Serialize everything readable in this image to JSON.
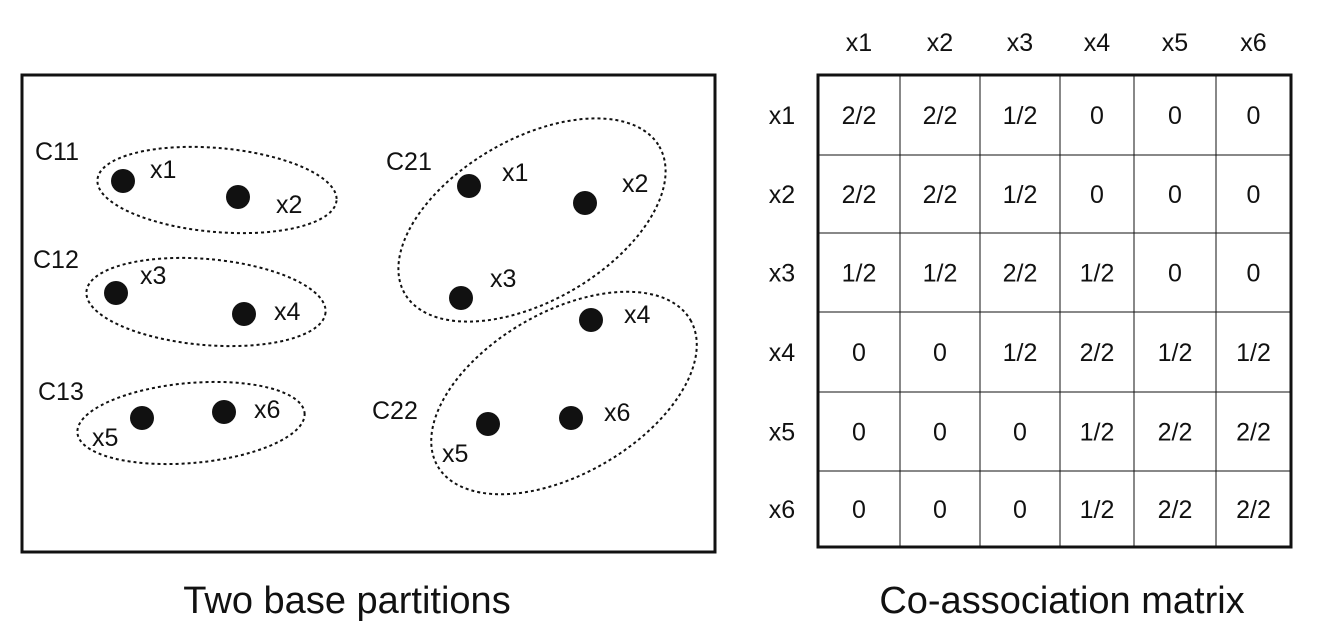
{
  "left_panel": {
    "caption": "Two base partitions",
    "clusters": [
      {
        "label": "C11",
        "points": [
          {
            "label": "x1"
          },
          {
            "label": "x2"
          }
        ]
      },
      {
        "label": "C12",
        "points": [
          {
            "label": "x3"
          },
          {
            "label": "x4"
          }
        ]
      },
      {
        "label": "C13",
        "points": [
          {
            "label": "x5"
          },
          {
            "label": "x6"
          }
        ]
      },
      {
        "label": "C21",
        "points": [
          {
            "label": "x1"
          },
          {
            "label": "x2"
          },
          {
            "label": "x3"
          }
        ]
      },
      {
        "label": "C22",
        "points": [
          {
            "label": "x4"
          },
          {
            "label": "x5"
          },
          {
            "label": "x6"
          }
        ]
      }
    ]
  },
  "matrix": {
    "caption": "Co-association matrix",
    "column_headers": [
      "x1",
      "x2",
      "x3",
      "x4",
      "x5",
      "x6"
    ],
    "row_headers": [
      "x1",
      "x2",
      "x3",
      "x4",
      "x5",
      "x6"
    ],
    "rows": [
      [
        "2/2",
        "2/2",
        "1/2",
        "0",
        "0",
        "0"
      ],
      [
        "2/2",
        "2/2",
        "1/2",
        "0",
        "0",
        "0"
      ],
      [
        "1/2",
        "1/2",
        "2/2",
        "1/2",
        "0",
        "0"
      ],
      [
        "0",
        "0",
        "1/2",
        "2/2",
        "1/2",
        "1/2"
      ],
      [
        "0",
        "0",
        "0",
        "1/2",
        "2/2",
        "2/2"
      ],
      [
        "0",
        "0",
        "0",
        "1/2",
        "2/2",
        "2/2"
      ]
    ]
  }
}
